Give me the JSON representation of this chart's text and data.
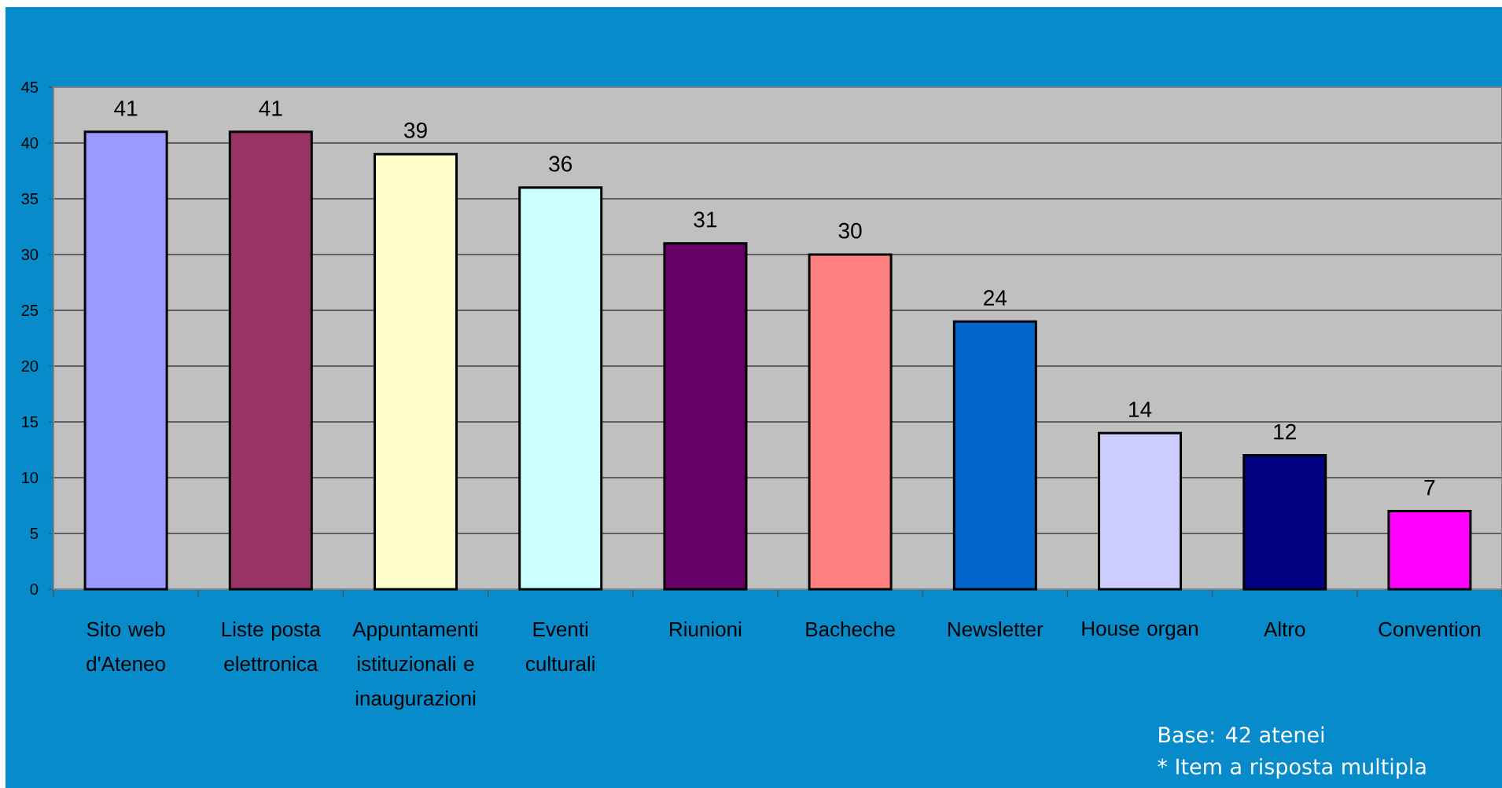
{
  "chart_data": {
    "type": "bar",
    "categories": [
      "Sito web d'Ateneo",
      "Liste posta elettronica",
      "Appuntamenti istituzionali e inaugurazioni",
      "Eventi culturali",
      "Riunioni",
      "Bacheche",
      "Newsletter",
      "House organ",
      "Altro",
      "Convention"
    ],
    "values": [
      41,
      41,
      39,
      36,
      31,
      30,
      24,
      14,
      12,
      7
    ],
    "colors": [
      "#9999ff",
      "#993366",
      "#ffffcc",
      "#ccffff",
      "#660066",
      "#ff8080",
      "#0066cc",
      "#ccccff",
      "#000080",
      "#ff00ff"
    ],
    "ylim": [
      0,
      45
    ],
    "yticks": [
      0,
      5,
      10,
      15,
      20,
      25,
      30,
      35,
      40,
      45
    ],
    "grid": "y",
    "data_labels": true,
    "annotations": [
      "Base: 42 atenei",
      "* Item a risposta multipla"
    ]
  }
}
